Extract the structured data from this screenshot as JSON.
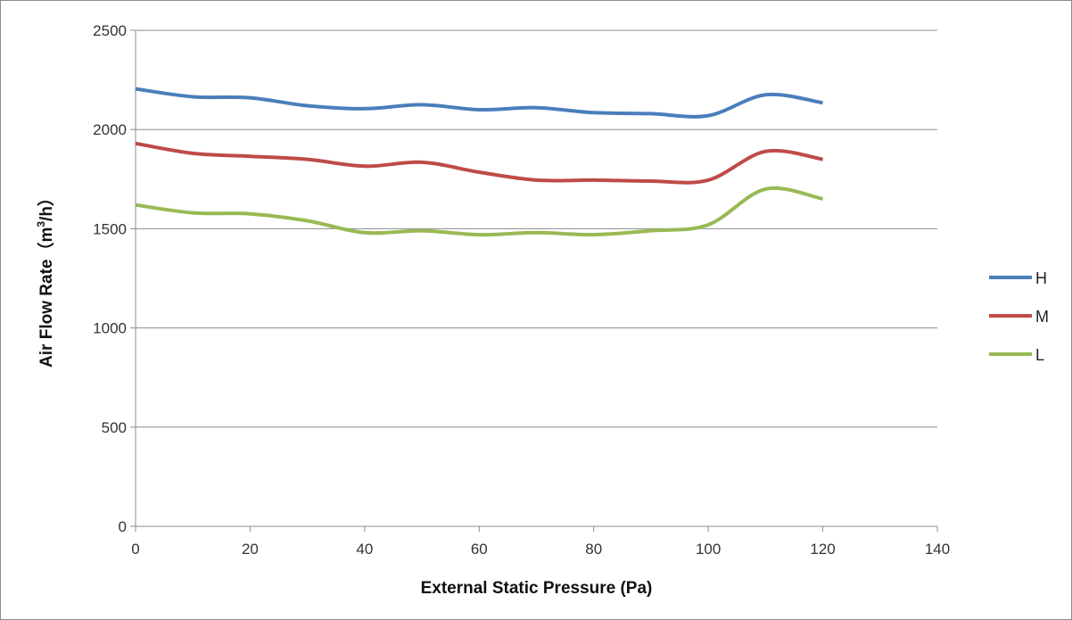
{
  "chart_data": {
    "type": "line",
    "title": "",
    "xlabel": "External Static Pressure (Pa)",
    "ylabel_text": "Air Flow Rate（m",
    "ylabel_sup": "3",
    "ylabel_tail": "/h）",
    "xlim": [
      0,
      140
    ],
    "ylim": [
      0,
      2500
    ],
    "xticks": [
      0,
      20,
      40,
      60,
      80,
      100,
      120,
      140
    ],
    "yticks": [
      0,
      500,
      1000,
      1500,
      2000,
      2500
    ],
    "grid": "horizontal",
    "legend_position": "right",
    "smooth": true,
    "x": [
      0,
      10,
      20,
      30,
      40,
      50,
      60,
      70,
      80,
      90,
      100,
      110,
      120
    ],
    "series": [
      {
        "name": "H",
        "color": "#4a7ebb",
        "values": [
          2205,
          2165,
          2160,
          2120,
          2105,
          2125,
          2100,
          2110,
          2085,
          2080,
          2070,
          2175,
          2135
        ]
      },
      {
        "name": "M",
        "color": "#be4b48",
        "values": [
          1930,
          1880,
          1865,
          1850,
          1815,
          1835,
          1785,
          1745,
          1745,
          1740,
          1745,
          1890,
          1850
        ]
      },
      {
        "name": "L",
        "color": "#98b954",
        "values": [
          1620,
          1580,
          1575,
          1540,
          1480,
          1490,
          1470,
          1480,
          1470,
          1490,
          1520,
          1700,
          1650
        ]
      }
    ]
  }
}
